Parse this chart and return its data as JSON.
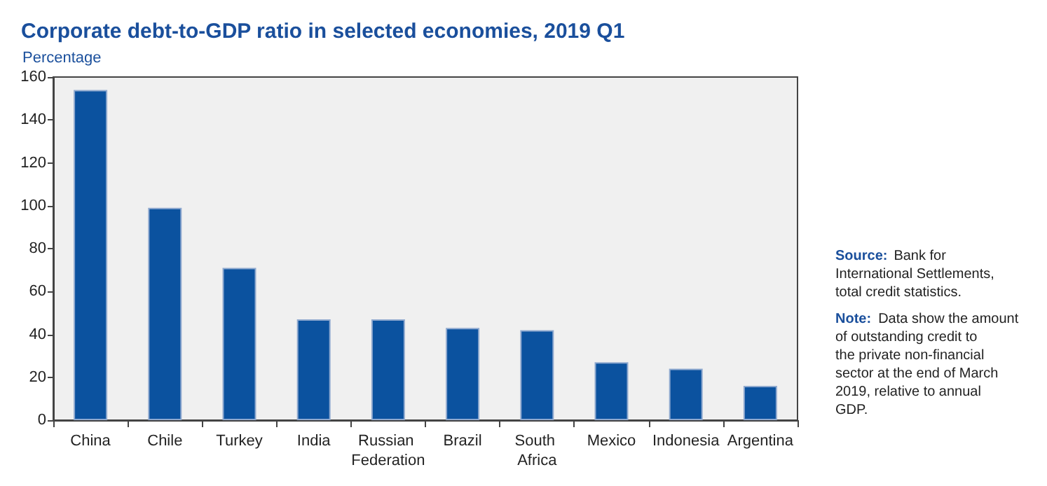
{
  "chart_data": {
    "type": "bar",
    "title": "Corporate debt-to-GDP ratio in selected economies, 2019 Q1",
    "ylabel": "Percentage",
    "categories": [
      "China",
      "Chile",
      "Turkey",
      "India",
      "Russian Federation",
      "Brazil",
      "South Africa",
      "Mexico",
      "Indonesia",
      "Argentina"
    ],
    "values": [
      154,
      99,
      71,
      47,
      47,
      43,
      42,
      27,
      24,
      16
    ],
    "color": "#0b529f",
    "ylim": [
      0,
      160
    ],
    "yticks": [
      0,
      20,
      40,
      60,
      80,
      100,
      120,
      140,
      160
    ],
    "grid": false,
    "annotations": [
      "Source: Bank for International Settlements, total credit statistics.",
      "Note: Data show the amount of outstanding credit to the private non-financial sector at the end of March 2019, relative to annual GDP."
    ]
  }
}
